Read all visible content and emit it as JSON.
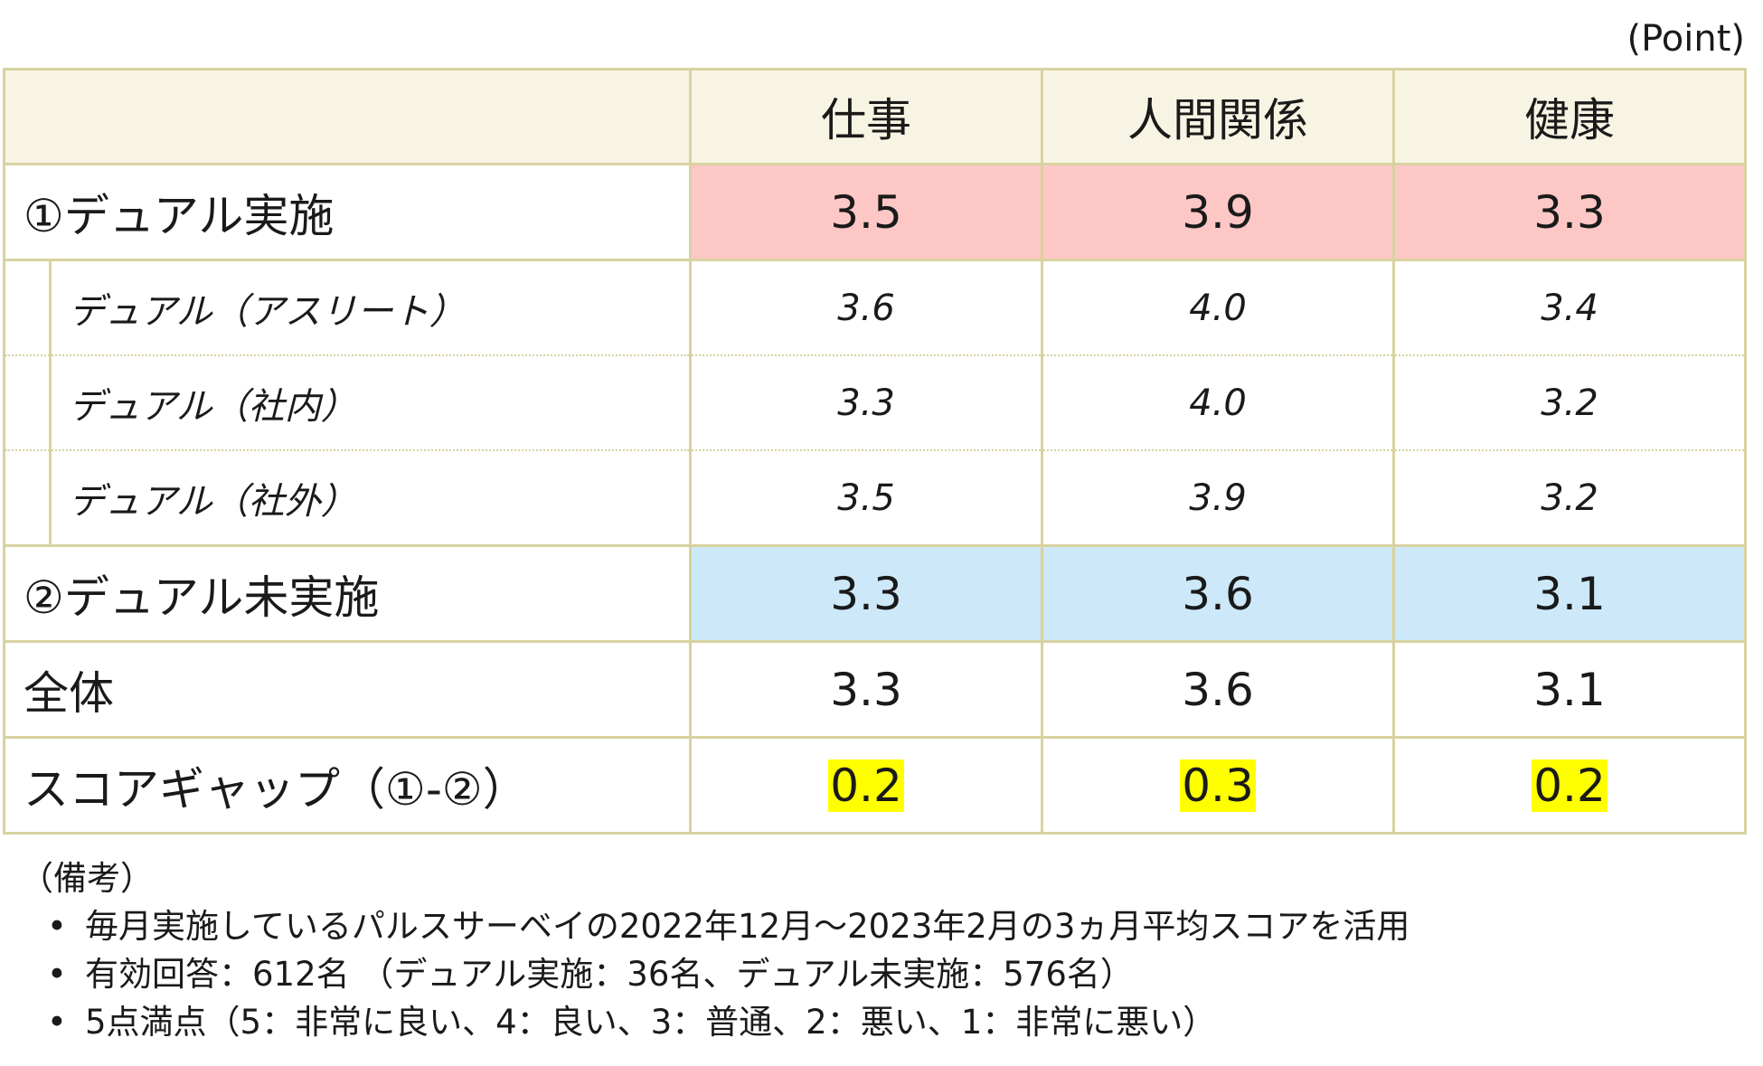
{
  "unit": "(Point)",
  "table": {
    "headers": [
      "",
      "仕事",
      "人間関係",
      "健康"
    ],
    "rows": {
      "dual": {
        "label": "①デュアル実施",
        "values": [
          "3.5",
          "3.9",
          "3.3"
        ]
      },
      "athlete": {
        "label": "デュアル（アスリート）",
        "values": [
          "3.6",
          "4.0",
          "3.4"
        ]
      },
      "internal": {
        "label": "デュアル（社内）",
        "values": [
          "3.3",
          "4.0",
          "3.2"
        ]
      },
      "external": {
        "label": "デュアル（社外）",
        "values": [
          "3.5",
          "3.9",
          "3.2"
        ]
      },
      "nodual": {
        "label": "②デュアル未実施",
        "values": [
          "3.3",
          "3.6",
          "3.1"
        ]
      },
      "total": {
        "label": "全体",
        "values": [
          "3.3",
          "3.6",
          "3.1"
        ]
      },
      "gap": {
        "label": "スコアギャップ（①-②）",
        "values": [
          "0.2",
          "0.3",
          "0.2"
        ]
      }
    },
    "colors": {
      "border": "#d8d2a0",
      "header_bg": "#f8f4e4",
      "dual_bg": "#fdc7c6",
      "nodual_bg": "#cde9f9",
      "highlight": "#ffff00"
    }
  },
  "notes": {
    "heading": "（備考）",
    "items": [
      "毎月実施しているパルスサーベイの2022年12月～2023年2月の3ヵ月平均スコアを活用",
      "有効回答：612名 （デュアル実施：36名、デュアル未実施：576名）",
      "5点満点（5：非常に良い、4：良い、3：普通、2：悪い、1：非常に悪い）"
    ]
  }
}
